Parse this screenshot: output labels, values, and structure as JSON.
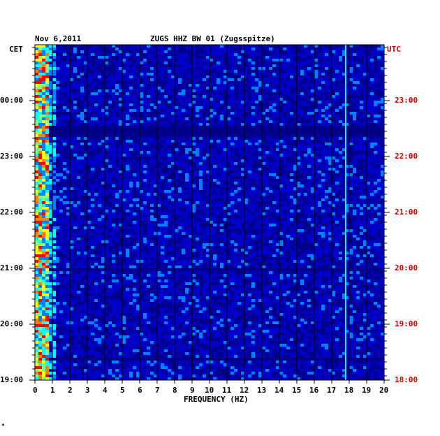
{
  "header": {
    "date": "Nov 6,2011",
    "station": "ZUGS HHZ BW 01 (Zugsspitze)",
    "left_zone": "CET",
    "right_zone": "UTC",
    "corner_mark": "*"
  },
  "chart_data": {
    "type": "heatmap",
    "title": "ZUGS HHZ BW 01 (Zugsspitze)",
    "date": "Nov 6,2011",
    "xlabel": "FREQUENCY (HZ)",
    "xlim": [
      0,
      20
    ],
    "x_ticks": [
      "0",
      "1",
      "2",
      "3",
      "4",
      "5",
      "6",
      "7",
      "8",
      "9",
      "10",
      "11",
      "12",
      "13",
      "14",
      "15",
      "16",
      "17",
      "18",
      "19",
      "20"
    ],
    "y_left_label": "CET",
    "y_left_ticks": [
      "00:00",
      "23:00",
      "22:00",
      "21:00",
      "20:00",
      "19:00"
    ],
    "y_right_label": "UTC",
    "y_right_ticks": [
      "23:00",
      "22:00",
      "21:00",
      "20:00",
      "19:00",
      "18:00"
    ],
    "colormap": [
      "#00008b",
      "#0000ff",
      "#0080ff",
      "#00ffff",
      "#80ff80",
      "#ffff00",
      "#ff8000",
      "#ff0000"
    ],
    "features": [
      {
        "desc": "persistent low-frequency energy",
        "freq_range_hz": [
          0.1,
          0.8
        ]
      },
      {
        "desc": "narrow persistent line",
        "freq_hz": 17.8
      }
    ]
  }
}
